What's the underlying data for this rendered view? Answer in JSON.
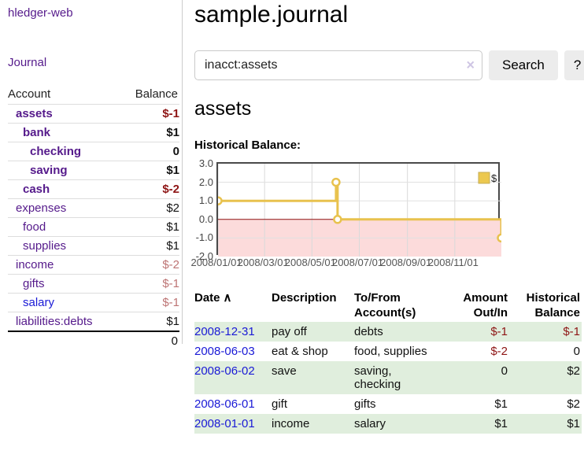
{
  "app": {
    "title": "hledger-web"
  },
  "colors": {
    "link_purple": "#551a8b",
    "link_blue": "#1a1ad6",
    "negative_strong": "#8e1515",
    "negative_soft": "#bd7474",
    "row_stripe_green": "#e0eedd",
    "button_bg": "#ececec",
    "chart_line": "#e8c24e",
    "chart_negative_region": "#fcdbdb",
    "chart_zero_line": "#8e1010"
  },
  "sidebar": {
    "journal_link": "Journal",
    "columns": {
      "account": "Account",
      "balance": "Balance"
    },
    "accounts": [
      {
        "name": "assets",
        "balance": "$-1",
        "level": 1,
        "in_view": true,
        "name_style": "purple",
        "balance_style": "neg-strong"
      },
      {
        "name": "bank",
        "balance": "$1",
        "level": 2,
        "in_view": true,
        "name_style": "purple",
        "balance_style": "normal"
      },
      {
        "name": "checking",
        "balance": "0",
        "level": 3,
        "in_view": true,
        "name_style": "purple",
        "balance_style": "normal"
      },
      {
        "name": "saving",
        "balance": "$1",
        "level": 3,
        "in_view": true,
        "name_style": "purple",
        "balance_style": "normal"
      },
      {
        "name": "cash",
        "balance": "$-2",
        "level": 2,
        "in_view": true,
        "name_style": "purple",
        "balance_style": "neg-strong"
      },
      {
        "name": "expenses",
        "balance": "$2",
        "level": 1,
        "in_view": false,
        "name_style": "purple",
        "balance_style": "normal"
      },
      {
        "name": "food",
        "balance": "$1",
        "level": 2,
        "in_view": false,
        "name_style": "purple",
        "balance_style": "normal"
      },
      {
        "name": "supplies",
        "balance": "$1",
        "level": 2,
        "in_view": false,
        "name_style": "purple",
        "balance_style": "normal"
      },
      {
        "name": "income",
        "balance": "$-2",
        "level": 1,
        "in_view": false,
        "name_style": "purple",
        "balance_style": "neg-soft"
      },
      {
        "name": "gifts",
        "balance": "$-1",
        "level": 2,
        "in_view": false,
        "name_style": "purple",
        "balance_style": "neg-soft"
      },
      {
        "name": "salary",
        "balance": "$-1",
        "level": 2,
        "in_view": false,
        "name_style": "blue",
        "balance_style": "neg-soft"
      },
      {
        "name": "liabilities:debts",
        "balance": "$1",
        "level": 1,
        "in_view": false,
        "name_style": "purple",
        "balance_style": "normal"
      }
    ],
    "total": "0"
  },
  "header": {
    "title": "sample.journal"
  },
  "search": {
    "value": "inacct:assets",
    "clear_icon": "×",
    "button_label": "Search",
    "help_label": "?"
  },
  "account_page": {
    "title": "assets",
    "chart_heading": "Historical Balance:"
  },
  "chart_data": {
    "type": "line",
    "step": true,
    "title": "Historical Balance",
    "x_range": [
      "2008-01-01",
      "2008-12-31"
    ],
    "ylim": [
      -2,
      3
    ],
    "y_ticks": [
      {
        "label": "3.0",
        "value": 3
      },
      {
        "label": "2.0",
        "value": 2
      },
      {
        "label": "1.0",
        "value": 1
      },
      {
        "label": "0.0",
        "value": 0
      },
      {
        "label": "-1.0",
        "value": -1
      },
      {
        "label": "-2.0",
        "value": -2
      }
    ],
    "x_ticks": [
      {
        "label": "2008/01/01",
        "date": "2008-01-01"
      },
      {
        "label": "2008/03/01",
        "date": "2008-03-01"
      },
      {
        "label": "2008/05/01",
        "date": "2008-05-01"
      },
      {
        "label": "2008/07/01",
        "date": "2008-07-01"
      },
      {
        "label": "2008/09/01",
        "date": "2008-09-01"
      },
      {
        "label": "2008/11/01",
        "date": "2008-11-01"
      }
    ],
    "series": [
      {
        "name": "$",
        "color": "#e8c24e",
        "points": [
          {
            "date": "2008-01-01",
            "value": 1
          },
          {
            "date": "2008-06-01",
            "value": 2
          },
          {
            "date": "2008-06-03",
            "value": 0
          },
          {
            "date": "2008-12-31",
            "value": -1
          }
        ]
      }
    ],
    "legend": {
      "position": "top-right",
      "label": "$"
    },
    "negative_region": true,
    "grid": true
  },
  "register": {
    "sort_icon": "∧",
    "headers": [
      {
        "lines": [
          "Date"
        ],
        "align": "left",
        "sortable": true
      },
      {
        "lines": [
          "Description"
        ],
        "align": "left",
        "sortable": false
      },
      {
        "lines": [
          "To/From",
          "Account(s)"
        ],
        "align": "left",
        "sortable": false
      },
      {
        "lines": [
          "Amount",
          "Out/In"
        ],
        "align": "right",
        "sortable": false
      },
      {
        "lines": [
          "Historical",
          "Balance"
        ],
        "align": "right",
        "sortable": false
      }
    ],
    "rows": [
      {
        "date": "2008-12-31",
        "description": "pay off",
        "accounts": [
          "debts"
        ],
        "amount": {
          "text": "$-1",
          "negative": true
        },
        "balance": {
          "text": "$-1",
          "negative": true
        }
      },
      {
        "date": "2008-06-03",
        "description": "eat & shop",
        "accounts": [
          "food, supplies"
        ],
        "amount": {
          "text": "$-2",
          "negative": true
        },
        "balance": {
          "text": "0",
          "negative": false
        }
      },
      {
        "date": "2008-06-02",
        "description": "save",
        "accounts": [
          "saving,",
          "checking"
        ],
        "amount": {
          "text": "0",
          "negative": false
        },
        "balance": {
          "text": "$2",
          "negative": false
        }
      },
      {
        "date": "2008-06-01",
        "description": "gift",
        "accounts": [
          "gifts"
        ],
        "amount": {
          "text": "$1",
          "negative": false
        },
        "balance": {
          "text": "$2",
          "negative": false
        }
      },
      {
        "date": "2008-01-01",
        "description": "income",
        "accounts": [
          "salary"
        ],
        "amount": {
          "text": "$1",
          "negative": false
        },
        "balance": {
          "text": "$1",
          "negative": false
        }
      }
    ]
  }
}
